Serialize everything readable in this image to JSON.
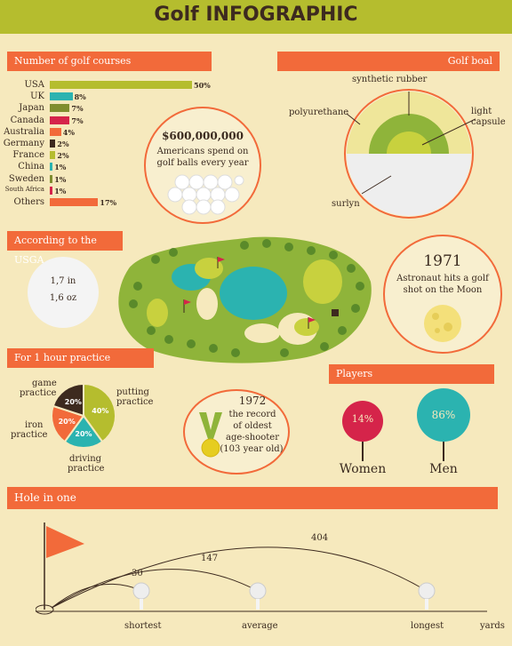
{
  "title": "Golf INFOGRAPHIC",
  "colors": {
    "orange": "#f26a3a",
    "green": "#8fb43a",
    "olive": "#b5bd2e",
    "teal": "#2bb3b0",
    "red": "#d5244a",
    "dark": "#3d2a1f",
    "bg": "#f6e9bd"
  },
  "courses": {
    "heading": "Number of golf courses",
    "rows": [
      {
        "country": "USA",
        "pct": "50%",
        "value": 50,
        "color": "#b5bd2e"
      },
      {
        "country": "UK",
        "pct": "8%",
        "value": 8,
        "color": "#2bb3b0"
      },
      {
        "country": "Japan",
        "pct": "7%",
        "value": 7,
        "color": "#7f8d2f"
      },
      {
        "country": "Canada",
        "pct": "7%",
        "value": 7,
        "color": "#d5244a"
      },
      {
        "country": "Australia",
        "pct": "4%",
        "value": 4,
        "color": "#f26a3a"
      },
      {
        "country": "Germany",
        "pct": "2%",
        "value": 2,
        "color": "#3d2a1f"
      },
      {
        "country": "France",
        "pct": "2%",
        "value": 2,
        "color": "#b5bd2e"
      },
      {
        "country": "China",
        "pct": "1%",
        "value": 1,
        "color": "#2bb3b0"
      },
      {
        "country": "Sweden",
        "pct": "1%",
        "value": 1,
        "color": "#7f8d2f"
      },
      {
        "country": "South Africa",
        "pct": "1%",
        "value": 1,
        "color": "#d5244a"
      },
      {
        "country": "Others",
        "pct": "17%",
        "value": 17,
        "color": "#f26a3a"
      }
    ]
  },
  "spend": {
    "amount": "$600,000,000",
    "text1": "Americans spend on",
    "text2": "golf balls every year"
  },
  "ball": {
    "heading": "Golf boal",
    "synthetic": "synthetic rubber",
    "poly": "polyurethane",
    "light": "light",
    "capsule": "capsule",
    "surlyn": "surlyn"
  },
  "usga": {
    "heading": "According to the USGA",
    "size": "1,7 in",
    "weight": "1,6 oz"
  },
  "moon": {
    "year": "1971",
    "line1": "Astronaut hits a golf",
    "line2": "shot on the Moon"
  },
  "practice": {
    "heading": "For 1 hour practice",
    "game": "game",
    "game2": "practice",
    "putting": "putting",
    "putting2": "practice",
    "iron": "iron",
    "iron2": "practice",
    "driving": "driving",
    "driving2": "practice",
    "slices": [
      {
        "label": "putting",
        "value": 40,
        "pct": "40%",
        "color": "#b5bd2e"
      },
      {
        "label": "driving",
        "value": 20,
        "pct": "20%",
        "color": "#2bb3b0"
      },
      {
        "label": "iron",
        "value": 20,
        "pct": "20%",
        "color": "#f26a3a"
      },
      {
        "label": "game",
        "value": 20,
        "pct": "20%",
        "color": "#3d2a1f"
      }
    ]
  },
  "record": {
    "year": "1972",
    "l1": "the record",
    "l2": "of oldest",
    "l3": "age-shooter",
    "l4": "(103 year old)"
  },
  "players": {
    "heading": "Players",
    "women_pct": "14%",
    "men_pct": "86%",
    "women": "Women",
    "men": "Men"
  },
  "hole": {
    "heading": "Hole in one",
    "d1": "30",
    "d2": "147",
    "d3": "404",
    "shortest": "shortest",
    "average": "average",
    "longest": "longest",
    "yards": "yards"
  }
}
